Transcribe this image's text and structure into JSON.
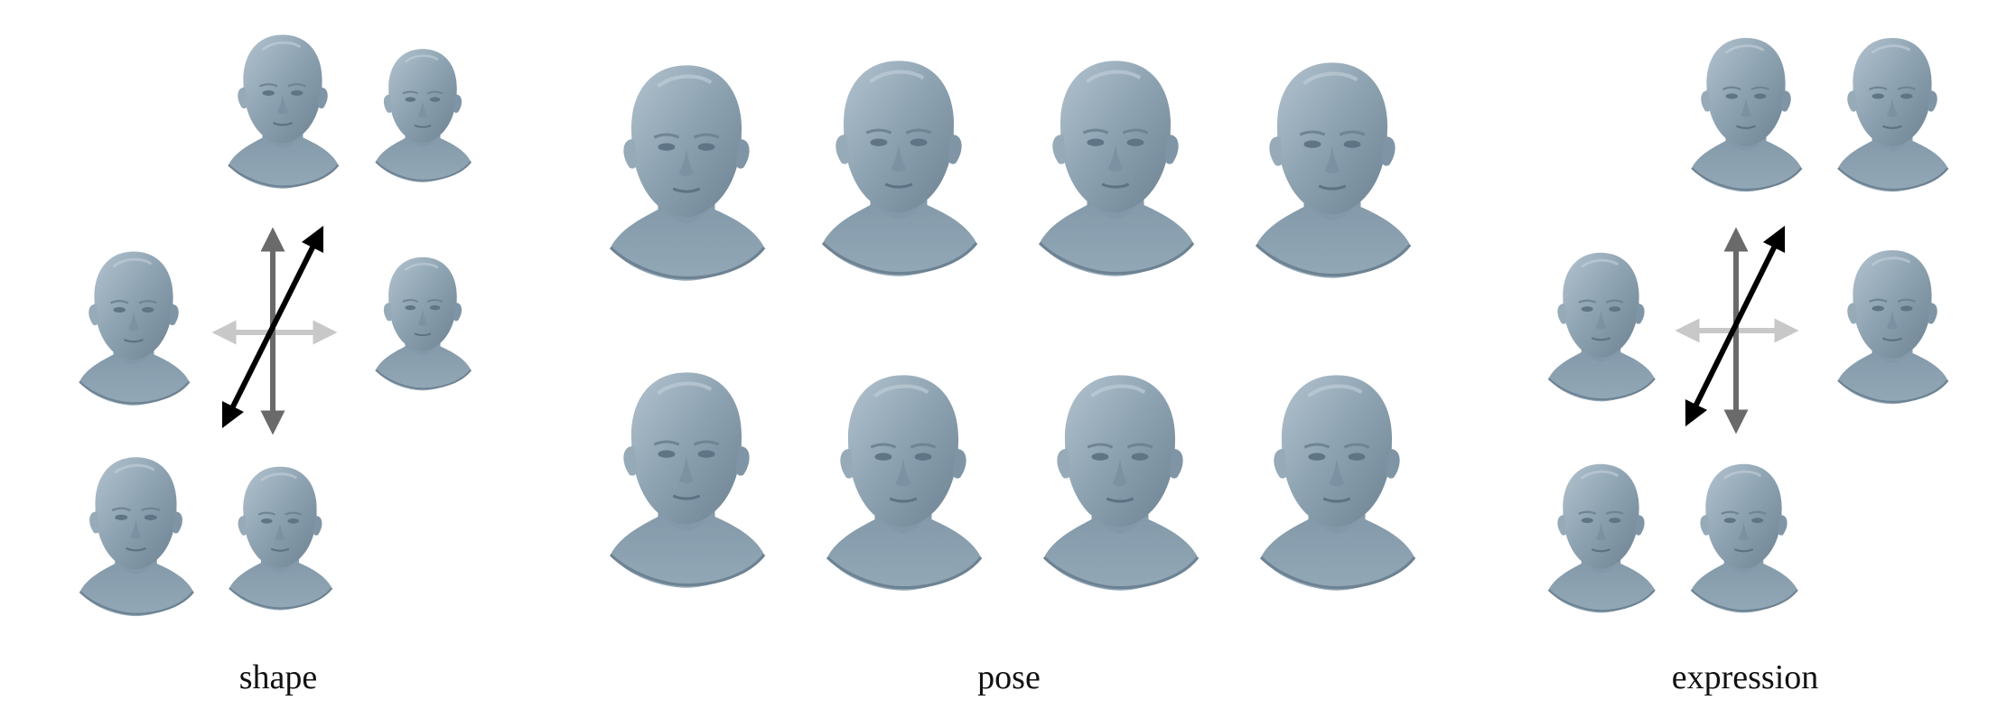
{
  "captions": {
    "shape": "shape",
    "pose": "pose",
    "expression": "expression"
  },
  "colors": {
    "mesh_base": "#8ea3b2",
    "mesh_shadow": "#6b8191",
    "mesh_light": "#b9c8d3",
    "arrow_dark": "#000000",
    "arrow_mid": "#6a6a6a",
    "arrow_light": "#c8c8c8"
  },
  "icons": {
    "head": "head-mesh-icon",
    "arrow": "double-arrow-icon"
  }
}
